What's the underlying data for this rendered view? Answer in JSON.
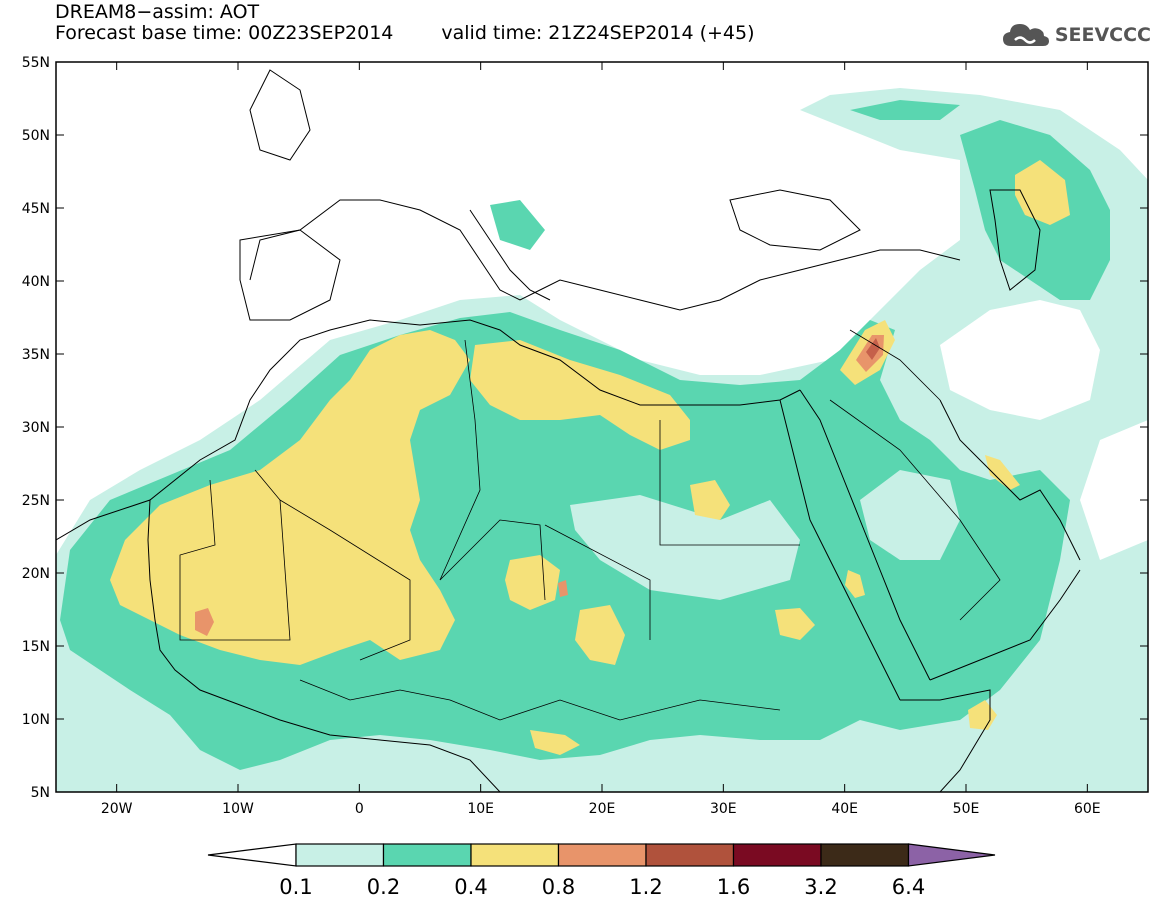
{
  "title": {
    "line1": "DREAM8−assim: AOT",
    "base_time": "Forecast base time: 00Z23SEP2014",
    "valid_time": "valid time: 21Z24SEP2014 (+45)"
  },
  "logo": {
    "text": "SEEVCCC",
    "icon": "cloud-icon"
  },
  "axes": {
    "lat_labels": [
      "55N",
      "50N",
      "45N",
      "40N",
      "35N",
      "30N",
      "25N",
      "20N",
      "15N",
      "10N",
      "5N"
    ],
    "lat_values": [
      55,
      50,
      45,
      40,
      35,
      30,
      25,
      20,
      15,
      10,
      5
    ],
    "lon_labels": [
      "20W",
      "10W",
      "0",
      "10E",
      "20E",
      "30E",
      "40E",
      "50E",
      "60E"
    ],
    "lon_values": [
      -20,
      -10,
      0,
      10,
      20,
      30,
      40,
      50,
      60
    ],
    "lon_range": [
      -25,
      65
    ],
    "lat_range": [
      5,
      55
    ]
  },
  "colorbar": {
    "levels": [
      "0.1",
      "0.2",
      "0.4",
      "0.8",
      "1.2",
      "1.6",
      "3.2",
      "6.4"
    ],
    "colors": [
      "#c8f0e6",
      "#5ad6b0",
      "#f5e17a",
      "#e8946a",
      "#b0523c",
      "#7a0a22",
      "#3c2a18",
      "#8c62a6"
    ],
    "extend": "both"
  },
  "colors": {
    "ocean_land": "#ffffff",
    "coast": "#000000",
    "level1": "#c8f0e6",
    "level2": "#5ad6b0",
    "level3": "#f5e17a",
    "level4": "#e8946a",
    "level5": "#c5604a"
  }
}
